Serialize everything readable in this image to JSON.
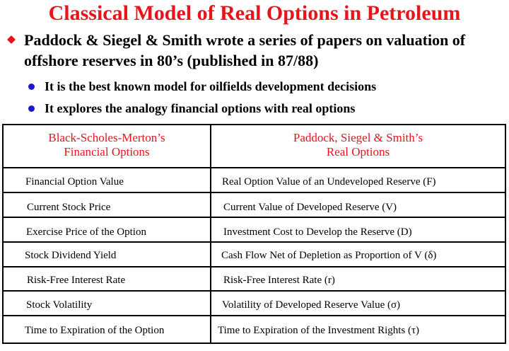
{
  "title": "Classical Model of Real Options in Petroleum",
  "main_bullet": "Paddock & Siegel & Smith wrote a series of papers on valuation of offshore reserves in 80’s (published in 87/88)",
  "sub_bullets": [
    "It is the best known model for oilfields development decisions",
    "It explores the analogy financial options with real options"
  ],
  "table": {
    "headers": [
      "Black-Scholes-Merton’s\nFinancial Options",
      "Paddock, Siegel & Smith’s\nReal Options"
    ],
    "rows": [
      [
        "Financial Option Value",
        "Real Option Value of an Undeveloped Reserve (F)"
      ],
      [
        "Current Stock Price",
        "Current Value of Developed Reserve (V)"
      ],
      [
        "Exercise Price of the Option",
        "Investment Cost to Develop the Reserve (D)"
      ],
      [
        "Stock Dividend Yield",
        "Cash Flow Net of Depletion as Proportion of V (δ)"
      ],
      [
        "Risk-Free Interest Rate",
        "Risk-Free Interest Rate (r)"
      ],
      [
        "Stock Volatility",
        "Volatility of Developed Reserve Value (σ)"
      ],
      [
        "Time to Expiration of the Option",
        "Time to Expiration of the Investment Rights (τ)"
      ]
    ]
  },
  "colors": {
    "title": "#e8141b",
    "header_text": "#e8141b",
    "diamond_bullet": "#e8141b",
    "round_bullet": "#1a1acc"
  },
  "icons": {
    "main_bullet": "diamond-icon",
    "sub_bullet": "dot-icon"
  }
}
